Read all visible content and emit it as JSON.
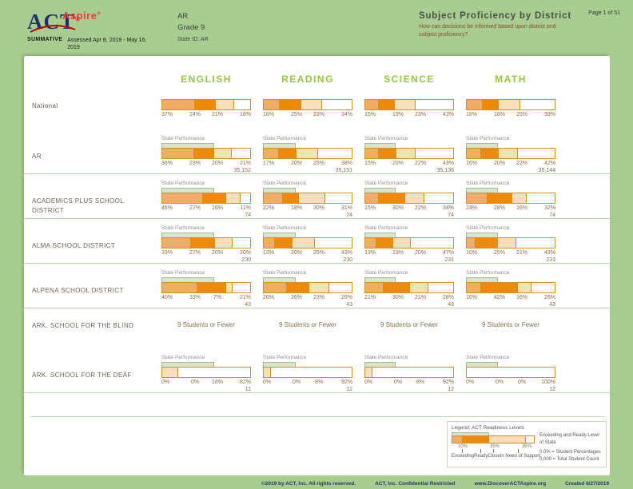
{
  "colors": {
    "page_green": "#A7CE90",
    "segments": [
      "#EFAE63",
      "#F08A05",
      "#F9DFBA",
      "#FFFFFF"
    ],
    "bar_border": "#D6901F",
    "overlay_fill": "#D8E4CE",
    "overlay_border": "#9FBF92",
    "subject_green": "#95C83C",
    "logo_navy": "#1F3168",
    "aspire_red": "#E8403C"
  },
  "header": {
    "logo_act": "ACT",
    "reg_mark": "®",
    "logo_aspire": "Aspire",
    "summative": "SUMMATIVE",
    "assessed": "Assessed Apr 8, 2019 - May 16, 2019",
    "region": "AR",
    "grade": "Grade 9",
    "state_id": "State ID: AR",
    "title": "Subject Proficiency by District",
    "subtitle": "How can decisions be informed based upon district and subject proficiency?",
    "page_label": "Page 1 of 51"
  },
  "subjects": [
    "ENGLISH",
    "READING",
    "SCIENCE",
    "MATH"
  ],
  "state_performance_label": "State Performance",
  "no_data_text": "9 Students or Fewer",
  "state_overlay_pct": [
    59,
    37,
    35,
    36
  ],
  "rows": [
    {
      "label": "National",
      "type": "bar",
      "overlay": false,
      "divider": false,
      "cells": [
        {
          "values": [
            37,
            24,
            21,
            18
          ]
        },
        {
          "values": [
            18,
            25,
            23,
            34
          ]
        },
        {
          "values": [
            15,
            19,
            23,
            43
          ]
        },
        {
          "values": [
            18,
            18,
            25,
            39
          ]
        }
      ]
    },
    {
      "label": "AR",
      "type": "bar",
      "overlay": true,
      "divider": true,
      "cells": [
        {
          "values": [
            36,
            23,
            20,
            21
          ],
          "count": "35,152"
        },
        {
          "values": [
            17,
            20,
            25,
            38
          ],
          "count": "35,151"
        },
        {
          "values": [
            15,
            20,
            22,
            43
          ],
          "count": "35,136"
        },
        {
          "values": [
            16,
            20,
            22,
            42
          ],
          "count": "35,144"
        }
      ]
    },
    {
      "label": "ACADEMICS PLUS SCHOOL DISTRICT",
      "type": "bar",
      "overlay": true,
      "divider": true,
      "cells": [
        {
          "values": [
            46,
            27,
            16,
            11
          ],
          "count": "74"
        },
        {
          "values": [
            22,
            18,
            30,
            31
          ],
          "count": "74"
        },
        {
          "values": [
            15,
            30,
            22,
            34
          ],
          "count": "74"
        },
        {
          "values": [
            24,
            28,
            16,
            32
          ],
          "count": "74"
        }
      ]
    },
    {
      "label": "ALMA SCHOOL DISTRICT",
      "type": "bar",
      "overlay": true,
      "divider": true,
      "cells": [
        {
          "values": [
            33,
            27,
            20,
            20
          ],
          "count": "230"
        },
        {
          "values": [
            13,
            20,
            25,
            43
          ],
          "count": "230"
        },
        {
          "values": [
            13,
            19,
            20,
            47
          ],
          "count": "231"
        },
        {
          "values": [
            10,
            25,
            21,
            43
          ],
          "count": "231"
        }
      ]
    },
    {
      "label": "ALPENA SCHOOL DISTRICT",
      "type": "bar",
      "overlay": true,
      "divider": true,
      "cells": [
        {
          "values": [
            40,
            33,
            7,
            21
          ],
          "count": "43"
        },
        {
          "values": [
            26,
            26,
            23,
            26
          ],
          "count": "43"
        },
        {
          "values": [
            21,
            30,
            21,
            28
          ],
          "count": "43"
        },
        {
          "values": [
            16,
            42,
            16,
            26
          ],
          "count": "43"
        }
      ]
    },
    {
      "label": "ARK. SCHOOL FOR THE BLIND",
      "type": "text",
      "overlay": false,
      "divider": false,
      "cells": [
        {},
        {},
        {},
        {}
      ]
    },
    {
      "label": "ARK. SCHOOL FOR THE DEAF",
      "type": "bar",
      "overlay": true,
      "divider": true,
      "cells": [
        {
          "values": [
            0,
            0,
            18,
            82
          ],
          "count": "11"
        },
        {
          "values": [
            0,
            0,
            8,
            92
          ],
          "count": "12"
        },
        {
          "values": [
            0,
            0,
            8,
            92
          ],
          "count": "12"
        },
        {
          "values": [
            0,
            0,
            0,
            100
          ],
          "count": "12"
        }
      ]
    }
  ],
  "legend": {
    "title": "Legend: ACT Readiness Levels",
    "sample_segments": [
      13,
      32,
      45,
      10
    ],
    "sample_overlay": 45,
    "sample_pcts": [
      "10%",
      "35%",
      "35%"
    ],
    "seg_labels": [
      "Exceeding",
      "Ready",
      "Close",
      "In Need of Support"
    ],
    "overlay_note": "Exceeding and Ready Level of State",
    "pct_note": "0.0% = Student Percentages",
    "count_note": "0,000 = Total Student Count"
  },
  "footer": {
    "copyright": "©2019 by ACT, Inc. All rights reserved.",
    "confidential": "ACT, Inc. Confidential Restricted",
    "website": "www.DiscoverACTAspire.org",
    "created": "Created 6/27/2019"
  }
}
